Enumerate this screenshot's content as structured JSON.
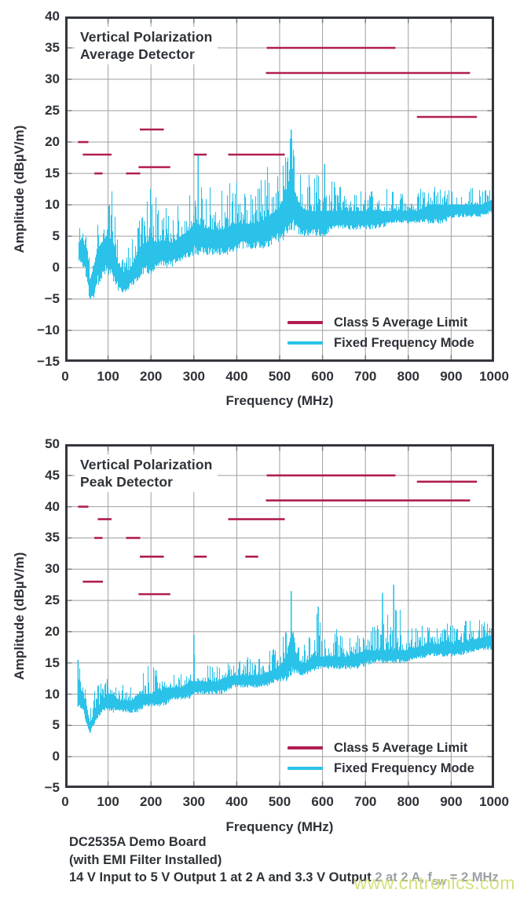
{
  "colors": {
    "limit_line": "#b11d53",
    "trace": "#2bc2e9",
    "text": "#2e3238",
    "grid": "#9e9e9e",
    "axis_border": "#33363c",
    "tick": "#7a7d82",
    "caption_gray": "#9aa0a6",
    "watermark": "#ccd95c"
  },
  "caption": {
    "line1": "DC2535A Demo Board",
    "line2": "(with EMI Filter Installed)",
    "line3_dark": "14 V Input to 5 V Output 1 at 2 A and 3.3 V Output ",
    "line3_gray_pre": "2 at 2 A, f",
    "line3_gray_sub": "SW",
    "line3_gray_post": " = 2 MHz"
  },
  "watermark": "www.cntronics.com",
  "chart_data": [
    {
      "type": "line",
      "title_lines": [
        "Vertical Polarization",
        "Average Detector"
      ],
      "xlabel": "Frequency (MHz)",
      "ylabel": "Amplitude (dBµV/m)",
      "xlim": [
        0,
        1000
      ],
      "ylim": [
        -15,
        40
      ],
      "xticks": [
        0,
        100,
        200,
        300,
        400,
        500,
        600,
        700,
        800,
        900,
        1000
      ],
      "yticks": [
        40,
        35,
        30,
        25,
        20,
        15,
        10,
        5,
        0,
        -5,
        -10,
        -15
      ],
      "grid": true,
      "legend": [
        {
          "label": "Class 5 Average Limit",
          "color_key": "limit_line"
        },
        {
          "label": "Fixed Frequency Mode",
          "color_key": "trace"
        }
      ],
      "limit_segments_mhz_db": [
        [
          30,
          54,
          20
        ],
        [
          41,
          108,
          18
        ],
        [
          68,
          87,
          15
        ],
        [
          142,
          175,
          15
        ],
        [
          171,
          245,
          16
        ],
        [
          174,
          230,
          22
        ],
        [
          300,
          330,
          18
        ],
        [
          380,
          512,
          18
        ],
        [
          468,
          944,
          31
        ],
        [
          470,
          770,
          35
        ],
        [
          820,
          960,
          24
        ]
      ],
      "trace": {
        "name": "Fixed Frequency Mode",
        "start_mhz": 30,
        "envelope_f_lo_typ_hi": [
          [
            30,
            1,
            4,
            8
          ],
          [
            40,
            0,
            4,
            9
          ],
          [
            50,
            -2,
            3,
            10
          ],
          [
            57,
            -6,
            -2,
            3
          ],
          [
            65,
            -5,
            0,
            6
          ],
          [
            75,
            -3,
            3,
            9
          ],
          [
            85,
            -2,
            4,
            11
          ],
          [
            95,
            -1,
            5,
            13
          ],
          [
            110,
            -2,
            4,
            13
          ],
          [
            125,
            -4,
            0,
            5
          ],
          [
            140,
            -4,
            -1,
            4
          ],
          [
            155,
            -3,
            0,
            6
          ],
          [
            170,
            -2,
            3,
            10
          ],
          [
            185,
            -1,
            4,
            12
          ],
          [
            200,
            -1,
            4,
            13
          ],
          [
            215,
            0,
            4,
            12
          ],
          [
            230,
            0,
            4,
            11
          ],
          [
            250,
            0,
            4,
            9
          ],
          [
            270,
            1,
            5,
            11
          ],
          [
            290,
            1,
            6,
            15
          ],
          [
            300,
            2,
            7,
            17
          ],
          [
            310,
            2,
            7,
            18
          ],
          [
            330,
            2,
            6,
            14
          ],
          [
            350,
            2,
            6,
            13
          ],
          [
            370,
            2,
            6,
            14
          ],
          [
            390,
            2,
            7,
            15
          ],
          [
            410,
            3,
            7,
            14
          ],
          [
            430,
            3,
            7,
            15
          ],
          [
            450,
            3,
            7,
            14
          ],
          [
            470,
            3,
            8,
            16
          ],
          [
            490,
            4,
            9,
            17
          ],
          [
            505,
            4,
            10,
            18
          ],
          [
            515,
            5,
            12,
            19
          ],
          [
            527,
            6,
            16,
            22
          ],
          [
            535,
            5,
            12,
            18
          ],
          [
            545,
            5,
            10,
            16
          ],
          [
            560,
            5,
            9,
            15
          ],
          [
            575,
            5,
            9,
            16
          ],
          [
            590,
            5,
            9,
            15
          ],
          [
            605,
            5,
            9,
            16
          ],
          [
            620,
            6,
            9,
            15
          ],
          [
            640,
            6,
            9,
            14
          ],
          [
            660,
            6,
            9,
            13
          ],
          [
            680,
            6,
            9,
            13
          ],
          [
            700,
            6,
            9,
            12
          ],
          [
            730,
            6,
            9,
            13
          ],
          [
            760,
            7,
            9,
            13
          ],
          [
            790,
            7,
            9,
            12
          ],
          [
            820,
            7,
            9,
            13
          ],
          [
            850,
            7,
            10,
            13
          ],
          [
            880,
            7,
            10,
            13
          ],
          [
            910,
            8,
            10,
            13
          ],
          [
            940,
            8,
            10,
            14
          ],
          [
            970,
            8,
            10,
            13
          ],
          [
            1000,
            9,
            11,
            13
          ]
        ],
        "notable_peaks_mhz_db": [
          [
            527,
            22
          ],
          [
            605,
            16.5
          ],
          [
            310,
            18
          ]
        ]
      },
      "noise_seed": 1337
    },
    {
      "type": "line",
      "title_lines": [
        "Vertical Polarization",
        "Peak Detector"
      ],
      "xlabel": "Frequency (MHz)",
      "ylabel": "Amplitude (dBµV/m)",
      "xlim": [
        0,
        1000
      ],
      "ylim": [
        -5,
        50
      ],
      "xticks": [
        0,
        100,
        200,
        300,
        400,
        500,
        600,
        700,
        800,
        900,
        1000
      ],
      "yticks": [
        50,
        45,
        40,
        35,
        30,
        25,
        20,
        15,
        10,
        5,
        0,
        -5
      ],
      "grid": true,
      "legend": [
        {
          "label": "Class 5 Average Limit",
          "color_key": "limit_line"
        },
        {
          "label": "Fixed Frequency Mode",
          "color_key": "trace"
        }
      ],
      "limit_segments_mhz_db": [
        [
          30,
          54,
          40
        ],
        [
          41,
          88,
          28
        ],
        [
          68,
          87,
          35
        ],
        [
          76,
          108,
          38
        ],
        [
          142,
          175,
          35
        ],
        [
          171,
          245,
          26
        ],
        [
          174,
          230,
          32
        ],
        [
          300,
          330,
          32
        ],
        [
          380,
          512,
          38
        ],
        [
          420,
          450,
          32
        ],
        [
          468,
          944,
          41
        ],
        [
          470,
          770,
          45
        ],
        [
          820,
          960,
          44
        ]
      ],
      "trace": {
        "name": "Fixed Frequency Mode",
        "start_mhz": 30,
        "envelope_f_lo_typ_hi": [
          [
            30,
            8,
            12,
            15.5
          ],
          [
            40,
            7,
            10,
            13
          ],
          [
            50,
            5,
            8,
            11
          ],
          [
            57,
            3.5,
            5,
            8
          ],
          [
            65,
            5,
            7,
            10
          ],
          [
            75,
            6,
            8,
            12
          ],
          [
            85,
            7,
            9,
            12.5
          ],
          [
            95,
            7,
            10,
            13
          ],
          [
            110,
            7,
            10,
            12
          ],
          [
            125,
            7,
            9,
            11.5
          ],
          [
            140,
            7,
            9,
            12
          ],
          [
            155,
            7,
            9,
            12
          ],
          [
            170,
            7,
            10,
            13
          ],
          [
            185,
            8,
            10,
            14
          ],
          [
            200,
            8,
            10,
            15.5
          ],
          [
            215,
            8,
            10,
            14
          ],
          [
            230,
            8,
            11,
            13
          ],
          [
            250,
            9,
            11,
            13.5
          ],
          [
            270,
            9,
            11,
            14
          ],
          [
            290,
            9,
            12,
            16
          ],
          [
            300,
            10,
            12,
            19.5
          ],
          [
            310,
            10,
            12,
            16
          ],
          [
            330,
            10,
            12,
            15
          ],
          [
            350,
            10,
            12,
            15
          ],
          [
            370,
            10,
            12.5,
            15
          ],
          [
            390,
            11,
            13,
            16
          ],
          [
            410,
            11,
            13,
            16.5
          ],
          [
            430,
            11,
            13,
            16
          ],
          [
            450,
            11,
            13,
            17
          ],
          [
            470,
            11,
            13.5,
            17
          ],
          [
            490,
            12,
            14,
            18
          ],
          [
            505,
            12,
            15,
            19
          ],
          [
            515,
            12,
            16,
            21
          ],
          [
            527,
            13,
            20,
            26.5
          ],
          [
            535,
            13,
            17,
            22
          ],
          [
            545,
            13,
            15,
            19
          ],
          [
            560,
            13,
            15,
            18.5
          ],
          [
            575,
            13.5,
            16,
            20
          ],
          [
            590,
            14,
            16,
            24
          ],
          [
            605,
            14,
            16,
            22.5
          ],
          [
            620,
            14,
            16,
            22.5
          ],
          [
            640,
            14,
            16,
            20
          ],
          [
            660,
            14,
            16,
            19
          ],
          [
            680,
            14,
            16.5,
            20
          ],
          [
            700,
            14.5,
            17,
            21
          ],
          [
            720,
            15,
            17,
            22
          ],
          [
            740,
            15,
            17,
            26
          ],
          [
            766,
            15,
            17,
            27.5
          ],
          [
            790,
            15,
            17,
            21
          ],
          [
            820,
            15.5,
            17.5,
            21
          ],
          [
            850,
            16,
            18,
            21
          ],
          [
            880,
            16,
            18,
            21.5
          ],
          [
            910,
            16,
            18,
            21
          ],
          [
            940,
            16.5,
            18.5,
            22
          ],
          [
            970,
            17,
            19,
            22
          ],
          [
            1000,
            17,
            19.5,
            22
          ]
        ],
        "notable_peaks_mhz_db": [
          [
            527,
            26.5
          ],
          [
            740,
            26.2
          ],
          [
            766,
            27.5
          ],
          [
            590,
            24
          ],
          [
            300,
            19.5
          ],
          [
            30,
            15.5
          ]
        ]
      },
      "noise_seed": 4242
    }
  ]
}
